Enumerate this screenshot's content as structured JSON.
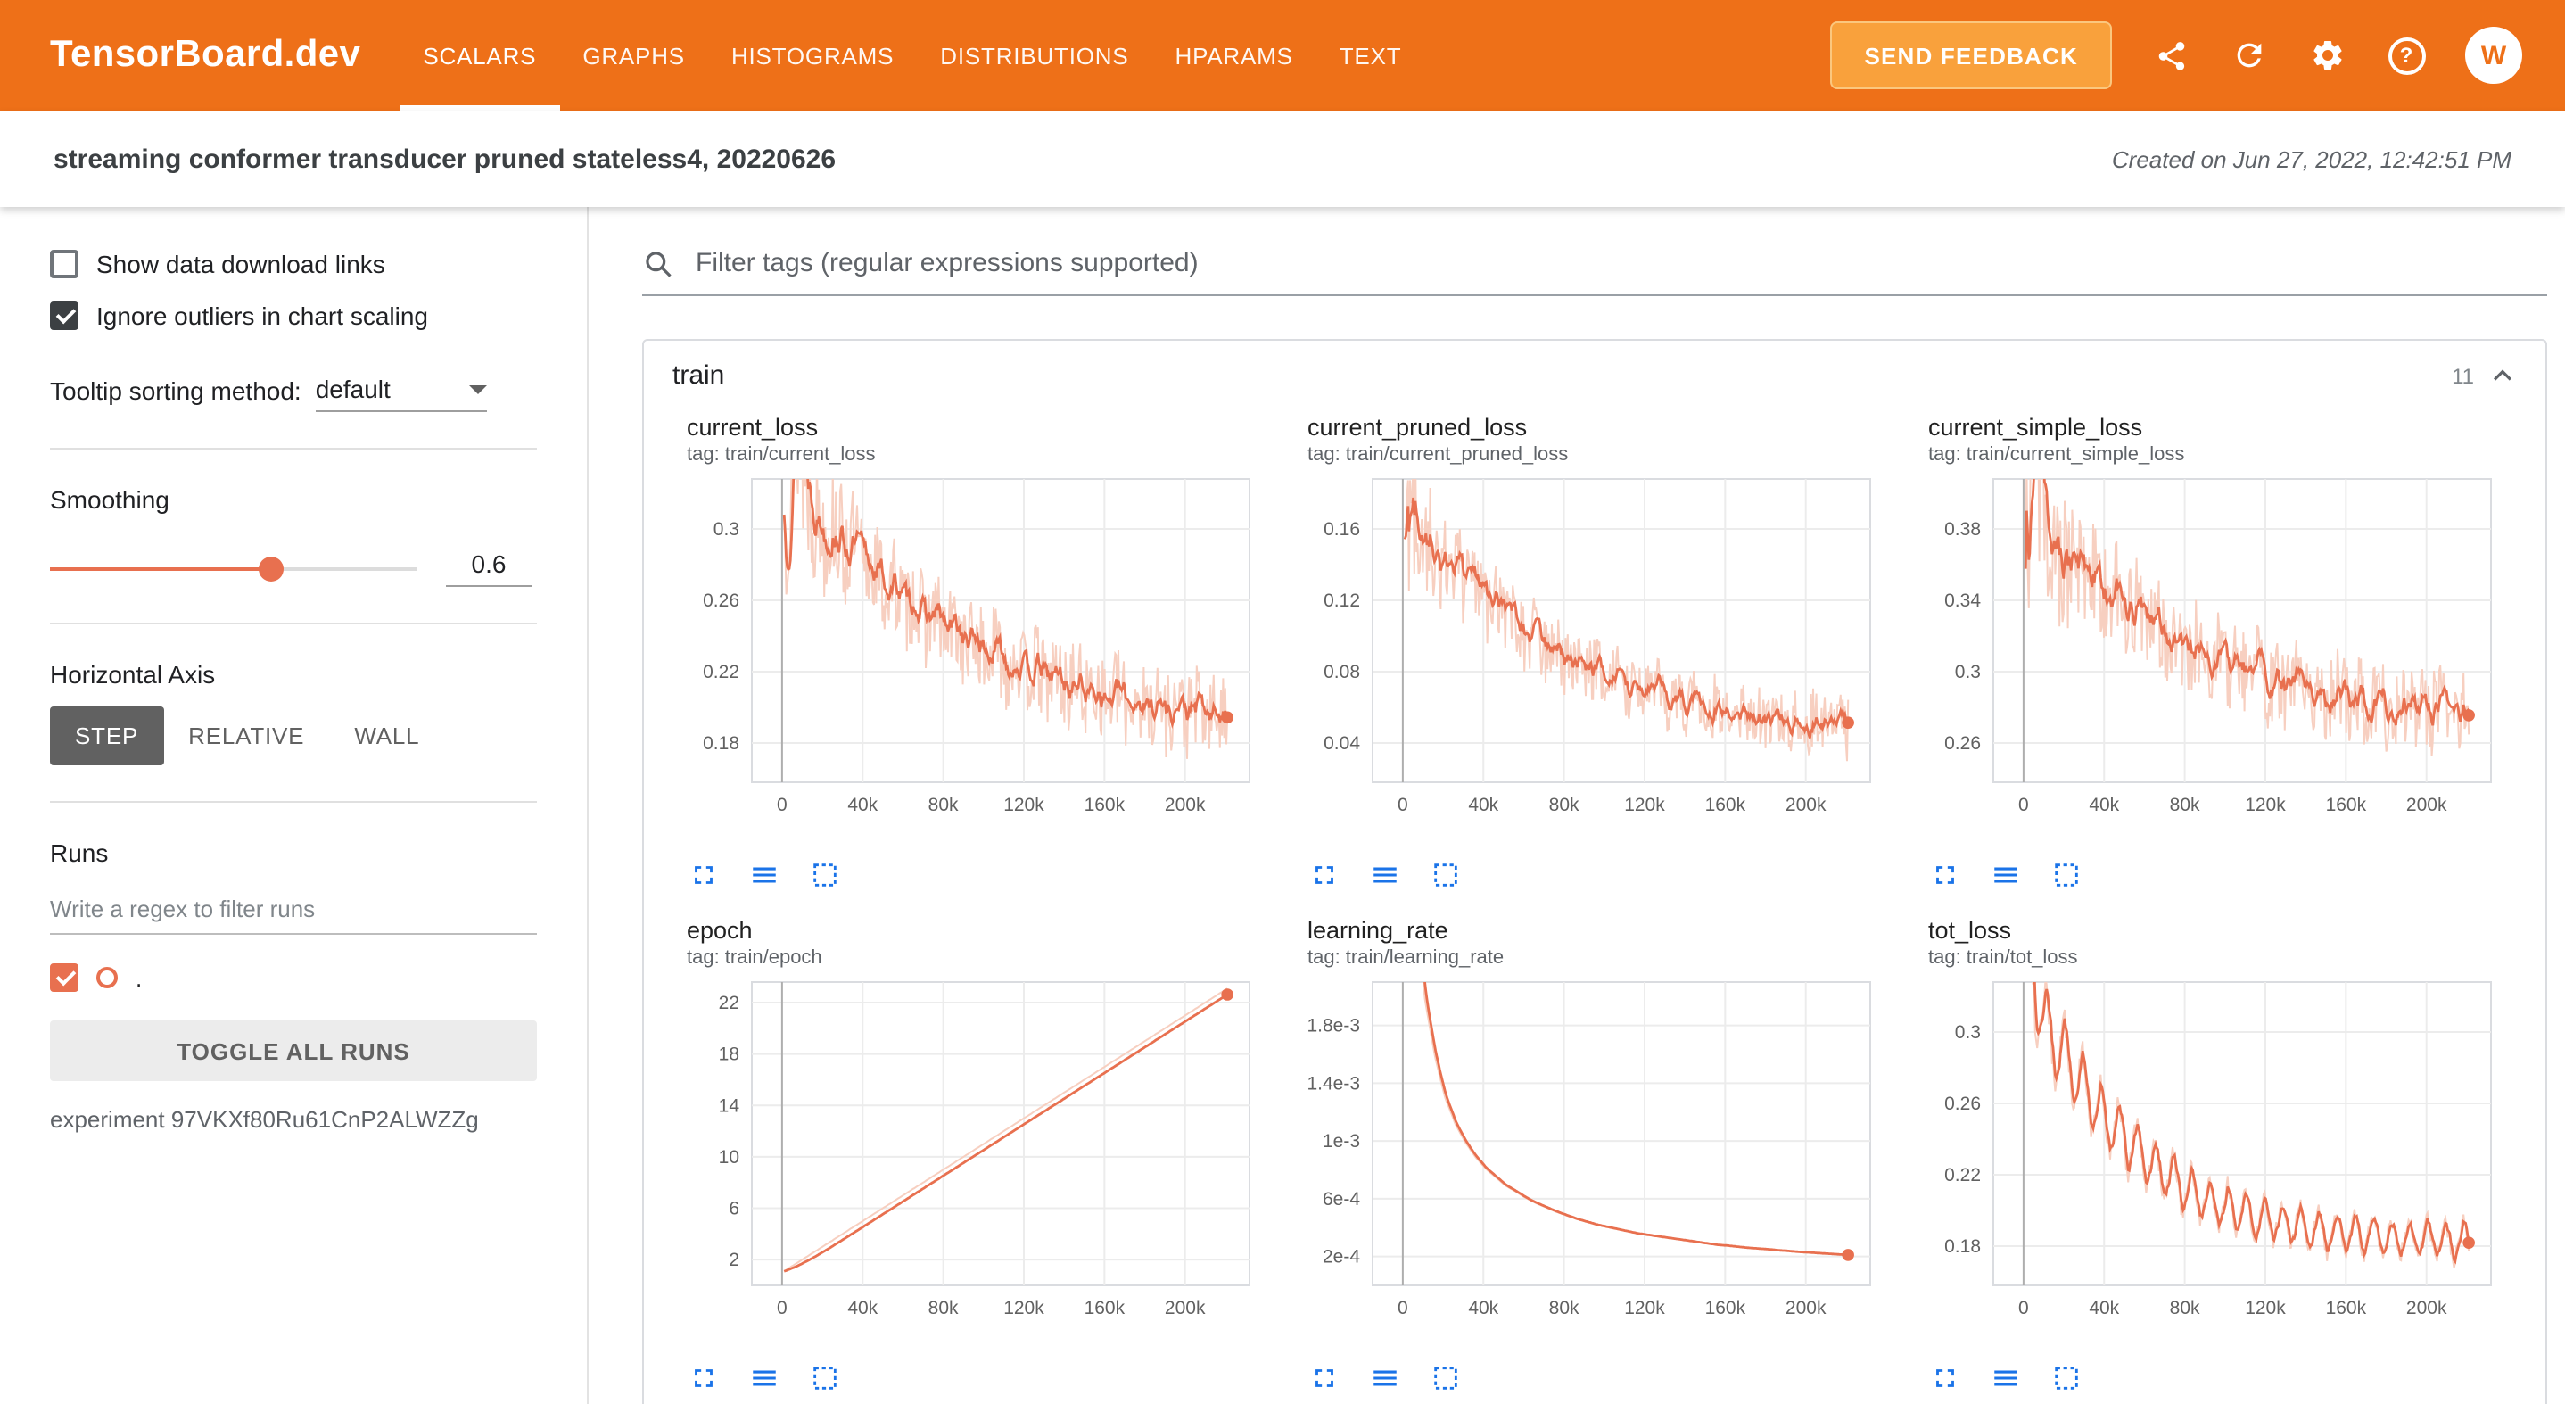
{
  "header": {
    "logo": "TensorBoard.dev",
    "nav": [
      "SCALARS",
      "GRAPHS",
      "HISTOGRAMS",
      "DISTRIBUTIONS",
      "HPARAMS",
      "TEXT"
    ],
    "active_tab": "SCALARS",
    "feedback_button": "SEND FEEDBACK",
    "icons": [
      "share-icon",
      "refresh-icon",
      "settings-icon",
      "help-icon"
    ],
    "avatar_initial": "W"
  },
  "subheader": {
    "title": "streaming conformer transducer pruned stateless4, 20220626",
    "created": "Created on Jun 27, 2022, 12:42:51 PM"
  },
  "sidebar": {
    "show_download": {
      "label": "Show data download links",
      "checked": false
    },
    "ignore_outliers": {
      "label": "Ignore outliers in chart scaling",
      "checked": true
    },
    "tooltip_sort": {
      "label": "Tooltip sorting method:",
      "value": "default"
    },
    "smoothing": {
      "label": "Smoothing",
      "value": "0.6"
    },
    "haxis": {
      "label": "Horizontal Axis",
      "options": [
        "STEP",
        "RELATIVE",
        "WALL"
      ],
      "selected": "STEP"
    },
    "runs": {
      "label": "Runs",
      "filter_placeholder": "Write a regex to filter runs",
      "run_name": ".",
      "run_checked": true,
      "toggle_button": "TOGGLE ALL RUNS",
      "experiment": "experiment 97VKXf80Ru61CnP2ALWZZg"
    }
  },
  "main": {
    "filter_placeholder": "Filter tags (regular expressions supported)",
    "card": {
      "title": "train",
      "count": "11"
    }
  },
  "colors": {
    "accent": "#ee7018",
    "series": "#e8704f",
    "series_raw": "#f7cfc0",
    "icon_blue": "#1a73e8"
  },
  "chart_data": [
    {
      "type": "line",
      "title": "current_loss",
      "tag": "tag: train/current_loss",
      "x_start": 1000,
      "x_step": 5000,
      "xlim": [
        -15000,
        232000
      ],
      "ylim": [
        0.158,
        0.328
      ],
      "yticks": {
        "values": [
          0.18,
          0.22,
          0.26,
          0.3
        ],
        "labels": [
          "0.18",
          "0.22",
          "0.26",
          "0.3"
        ]
      },
      "xticks": {
        "values": [
          0,
          40000,
          80000,
          120000,
          160000,
          200000
        ],
        "labels": [
          "0",
          "40k",
          "80k",
          "120k",
          "160k",
          "200k"
        ]
      },
      "smooth": 0.8,
      "noise": 0.024,
      "values": [
        0.3,
        0.365,
        0.332,
        0.31,
        0.298,
        0.306,
        0.286,
        0.294,
        0.274,
        0.282,
        0.263,
        0.271,
        0.254,
        0.262,
        0.246,
        0.254,
        0.239,
        0.247,
        0.232,
        0.241,
        0.226,
        0.235,
        0.221,
        0.23,
        0.216,
        0.225,
        0.212,
        0.221,
        0.208,
        0.217,
        0.205,
        0.214,
        0.202,
        0.211,
        0.199,
        0.208,
        0.197,
        0.206,
        0.195,
        0.204,
        0.193,
        0.202,
        0.191,
        0.199,
        0.19
      ]
    },
    {
      "type": "line",
      "title": "current_pruned_loss",
      "tag": "tag: train/current_pruned_loss",
      "x_start": 1000,
      "x_step": 5000,
      "xlim": [
        -15000,
        232000
      ],
      "ylim": [
        0.018,
        0.188
      ],
      "yticks": {
        "values": [
          0.04,
          0.08,
          0.12,
          0.16
        ],
        "labels": [
          "0.04",
          "0.08",
          "0.12",
          "0.16"
        ]
      },
      "xticks": {
        "values": [
          0,
          40000,
          80000,
          120000,
          160000,
          200000
        ],
        "labels": [
          "0",
          "40k",
          "80k",
          "120k",
          "160k",
          "200k"
        ]
      },
      "smooth": 0.8,
      "noise": 0.018,
      "values": [
        0.148,
        0.174,
        0.158,
        0.146,
        0.137,
        0.144,
        0.125,
        0.132,
        0.114,
        0.121,
        0.104,
        0.112,
        0.096,
        0.104,
        0.089,
        0.097,
        0.083,
        0.091,
        0.077,
        0.085,
        0.072,
        0.08,
        0.068,
        0.076,
        0.064,
        0.072,
        0.061,
        0.069,
        0.058,
        0.066,
        0.056,
        0.064,
        0.054,
        0.062,
        0.052,
        0.06,
        0.051,
        0.059,
        0.05,
        0.057,
        0.049,
        0.056,
        0.048,
        0.055,
        0.047
      ]
    },
    {
      "type": "line",
      "title": "current_simple_loss",
      "tag": "tag: train/current_simple_loss",
      "x_start": 1000,
      "x_step": 5000,
      "xlim": [
        -15000,
        232000
      ],
      "ylim": [
        0.238,
        0.408
      ],
      "yticks": {
        "values": [
          0.26,
          0.3,
          0.34,
          0.38
        ],
        "labels": [
          "0.26",
          "0.3",
          "0.34",
          "0.38"
        ]
      },
      "xticks": {
        "values": [
          0,
          40000,
          80000,
          120000,
          160000,
          200000
        ],
        "labels": [
          "0",
          "40k",
          "80k",
          "120k",
          "160k",
          "200k"
        ]
      },
      "smooth": 0.8,
      "noise": 0.024,
      "values": [
        0.372,
        0.406,
        0.386,
        0.368,
        0.357,
        0.365,
        0.347,
        0.355,
        0.338,
        0.346,
        0.33,
        0.338,
        0.322,
        0.33,
        0.315,
        0.323,
        0.309,
        0.317,
        0.304,
        0.312,
        0.299,
        0.307,
        0.295,
        0.303,
        0.291,
        0.299,
        0.288,
        0.296,
        0.285,
        0.293,
        0.282,
        0.29,
        0.28,
        0.288,
        0.278,
        0.286,
        0.276,
        0.284,
        0.274,
        0.282,
        0.273,
        0.281,
        0.272,
        0.28,
        0.271
      ]
    },
    {
      "type": "line",
      "title": "epoch",
      "tag": "tag: train/epoch",
      "x_start": 1000,
      "x_step": 5000,
      "xlim": [
        -15000,
        232000
      ],
      "ylim": [
        0,
        23.6
      ],
      "yticks": {
        "values": [
          2,
          6,
          10,
          14,
          18,
          22
        ],
        "labels": [
          "2",
          "6",
          "10",
          "14",
          "18",
          "22"
        ]
      },
      "xticks": {
        "values": [
          0,
          40000,
          80000,
          120000,
          160000,
          200000
        ],
        "labels": [
          "0",
          "40k",
          "80k",
          "120k",
          "160k",
          "200k"
        ]
      },
      "smooth": 0.9,
      "noise": 0,
      "values": [
        1.1,
        1.6,
        2.1,
        2.6,
        3.1,
        3.6,
        4.1,
        4.6,
        5.1,
        5.6,
        6.1,
        6.6,
        7.1,
        7.6,
        8.1,
        8.6,
        9.1,
        9.6,
        10.1,
        10.6,
        11.1,
        11.6,
        12.1,
        12.6,
        13.1,
        13.6,
        14.1,
        14.6,
        15.1,
        15.6,
        16.1,
        16.6,
        17.1,
        17.6,
        18.1,
        18.6,
        19.1,
        19.6,
        20.1,
        20.6,
        21.1,
        21.6,
        22.1,
        22.6,
        23.1
      ]
    },
    {
      "type": "line",
      "title": "learning_rate",
      "tag": "tag: train/learning_rate",
      "x_start": 1000,
      "x_step": 5000,
      "xlim": [
        -15000,
        232000
      ],
      "ylim": [
        0,
        0.0021
      ],
      "yticks": {
        "values": [
          0.0002,
          0.0006,
          0.001,
          0.0014,
          0.0018
        ],
        "labels": [
          "2e-4",
          "6e-4",
          "1e-3",
          "1.4e-3",
          "1.8e-3"
        ]
      },
      "xticks": {
        "values": [
          0,
          40000,
          80000,
          120000,
          160000,
          200000
        ],
        "labels": [
          "0",
          "40k",
          "80k",
          "120k",
          "160k",
          "200k"
        ]
      },
      "smooth": 0.6,
      "noise": 0,
      "values": [
        0.0045,
        0.0027,
        0.00198,
        0.00158,
        0.0013,
        0.00112,
        0.00099,
        0.00089,
        0.00081,
        0.00075,
        0.00069,
        0.00065,
        0.000605,
        0.00057,
        0.00054,
        0.00051,
        0.000485,
        0.00046,
        0.00044,
        0.00042,
        0.000405,
        0.00039,
        0.000375,
        0.00036,
        0.00035,
        0.00034,
        0.00033,
        0.00032,
        0.00031,
        0.0003,
        0.00029,
        0.00028,
        0.000275,
        0.000267,
        0.00026,
        0.000255,
        0.00025,
        0.000243,
        0.000238,
        0.000232,
        0.000228,
        0.000223,
        0.000219,
        0.000214,
        0.00021
      ]
    },
    {
      "type": "line",
      "title": "tot_loss",
      "tag": "tag: train/tot_loss",
      "x_start": 1000,
      "x_step": 5000,
      "xlim": [
        -15000,
        232000
      ],
      "ylim": [
        0.158,
        0.328
      ],
      "yticks": {
        "values": [
          0.18,
          0.22,
          0.26,
          0.3
        ],
        "labels": [
          "0.18",
          "0.22",
          "0.26",
          "0.3"
        ]
      },
      "xticks": {
        "values": [
          0,
          40000,
          80000,
          120000,
          160000,
          200000
        ],
        "labels": [
          "0",
          "40k",
          "80k",
          "120k",
          "160k",
          "200k"
        ]
      },
      "smooth": 0.55,
      "noise": 0.004,
      "osc": {
        "amp": 0.012,
        "period": 9000
      },
      "values": [
        0.4,
        0.315,
        0.302,
        0.292,
        0.284,
        0.276,
        0.266,
        0.259,
        0.251,
        0.246,
        0.239,
        0.234,
        0.228,
        0.224,
        0.219,
        0.216,
        0.212,
        0.209,
        0.206,
        0.204,
        0.201,
        0.199,
        0.197,
        0.196,
        0.194,
        0.193,
        0.192,
        0.191,
        0.19,
        0.189,
        0.188,
        0.188,
        0.187,
        0.187,
        0.186,
        0.186,
        0.185,
        0.185,
        0.184,
        0.184,
        0.184,
        0.183,
        0.183,
        0.183,
        0.182
      ]
    }
  ]
}
